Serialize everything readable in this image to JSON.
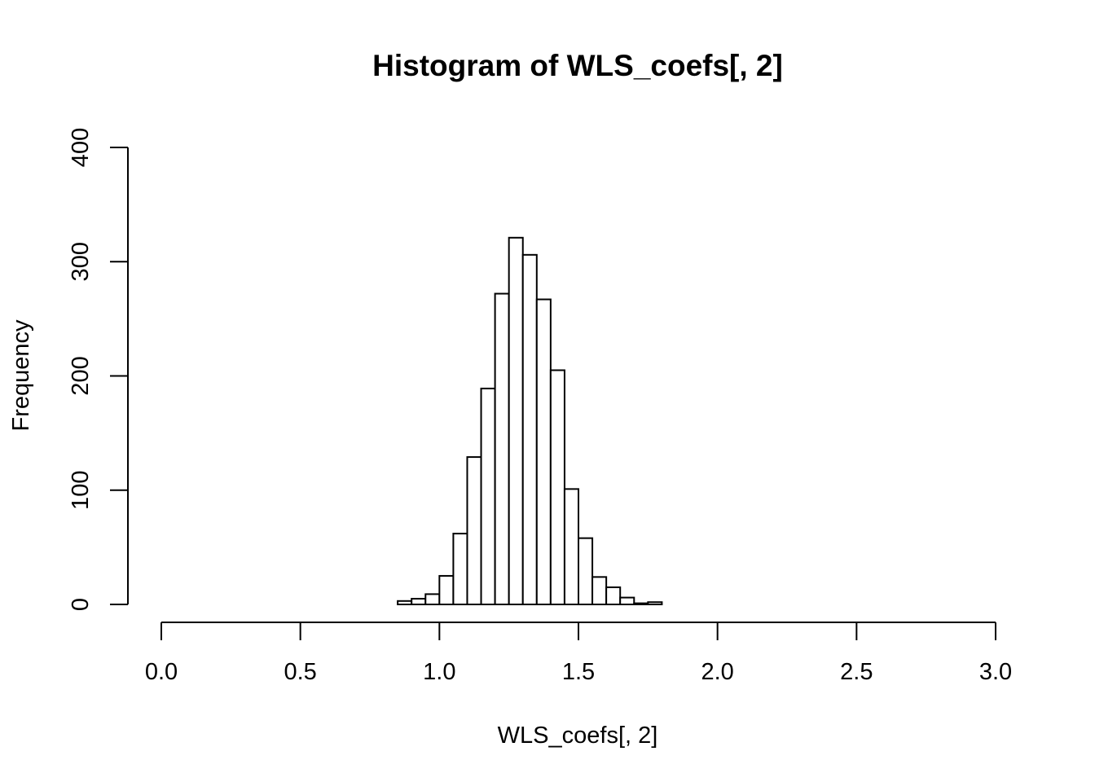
{
  "chart_data": {
    "type": "bar",
    "title": "Histogram of WLS_coefs[, 2]",
    "xlabel": "WLS_coefs[, 2]",
    "ylabel": "Frequency",
    "xlim": [
      0,
      3
    ],
    "ylim": [
      0,
      400
    ],
    "x_ticks": [
      "0.0",
      "0.5",
      "1.0",
      "1.5",
      "2.0",
      "2.5",
      "3.0"
    ],
    "x_tick_values": [
      0,
      0.5,
      1,
      1.5,
      2,
      2.5,
      3
    ],
    "y_ticks": [
      "0",
      "100",
      "200",
      "300",
      "400"
    ],
    "y_tick_values": [
      0,
      100,
      200,
      300,
      400
    ],
    "bin_edges": [
      0.85,
      0.9,
      0.95,
      1.0,
      1.05,
      1.1,
      1.15,
      1.2,
      1.25,
      1.3,
      1.35,
      1.4,
      1.45,
      1.5,
      1.55,
      1.6,
      1.65,
      1.7,
      1.75,
      1.8
    ],
    "values": [
      3,
      5,
      9,
      25,
      62,
      129,
      189,
      272,
      321,
      306,
      267,
      205,
      101,
      58,
      24,
      15,
      6,
      1,
      2
    ],
    "grid": false,
    "legend": "none",
    "colors": {
      "bar_fill": "#ffffff",
      "bar_stroke": "#000000",
      "axis": "#000000",
      "background": "#ffffff"
    }
  }
}
